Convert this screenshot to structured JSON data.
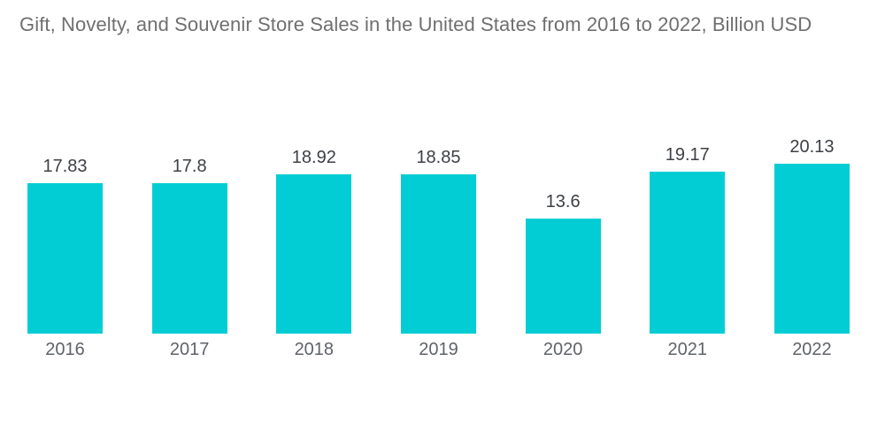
{
  "chart_data": {
    "type": "bar",
    "title": "Gift, Novelty, and Souvenir Store Sales in the United States from 2016 to 2022, Billion USD",
    "categories": [
      "2016",
      "2017",
      "2018",
      "2019",
      "2020",
      "2021",
      "2022"
    ],
    "values": [
      17.83,
      17.8,
      18.92,
      18.85,
      13.6,
      19.17,
      20.13
    ],
    "value_labels": [
      "17.83",
      "17.8",
      "18.92",
      "18.85",
      "13.6",
      "19.17",
      "20.13"
    ],
    "xlabel": "",
    "ylabel": "",
    "ylim": [
      0,
      20.13
    ],
    "grid": false,
    "legend": false,
    "axes_shown": false,
    "value_labels_position": "above-bars"
  },
  "colors": {
    "bar": "#03CDD4",
    "title_text": "#6F6F6F",
    "value_text": "#3D4045",
    "axis_text": "#5F6368",
    "background": "#FFFFFF"
  }
}
